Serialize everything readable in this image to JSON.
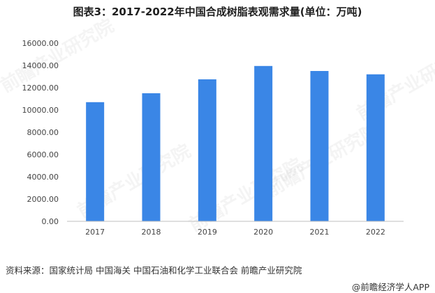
{
  "title": "图表3：2017-2022年中国合成树脂表观需求量(单位：万吨)",
  "source": "资料来源：国家统计局 中国海关 中国石油和化学工业联合会 前瞻产业研究院",
  "brand": "@前瞻经济学人APP",
  "watermark": "前瞻产业研究院",
  "colors": {
    "bar": "#3a86e6",
    "axis": "#bfbfbf",
    "text": "#444444"
  },
  "chart_data": {
    "type": "bar",
    "title": "图表3：2017-2022年中国合成树脂表观需求量(单位：万吨)",
    "categories": [
      "2017",
      "2018",
      "2019",
      "2020",
      "2021",
      "2022"
    ],
    "values": [
      10700,
      11500,
      12750,
      13950,
      13500,
      13200
    ],
    "ylim": [
      0,
      16000
    ],
    "yticks": [
      "0.00",
      "2000.00",
      "4000.00",
      "6000.00",
      "8000.00",
      "10000.00",
      "12000.00",
      "14000.00",
      "16000.00"
    ],
    "grid": false,
    "legend": "none"
  }
}
